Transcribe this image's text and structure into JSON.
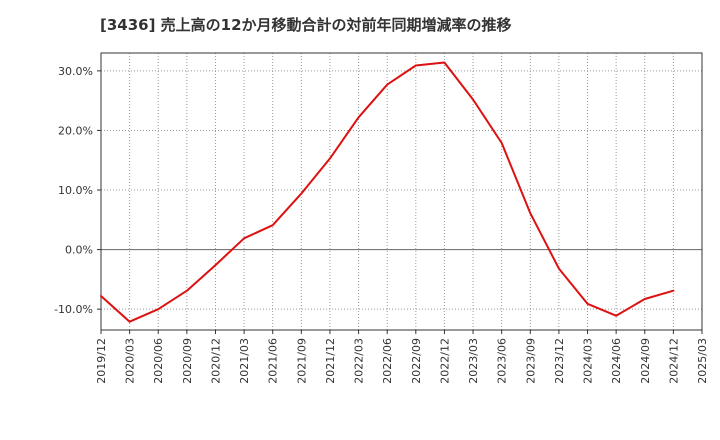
{
  "chart_data": {
    "type": "line",
    "title": "[3436]  売上高の12か月移動合計の対前年同期増減率の推移",
    "xlabel": "",
    "ylabel": "",
    "x": [
      "2019/12",
      "2020/03",
      "2020/06",
      "2020/09",
      "2020/12",
      "2021/03",
      "2021/06",
      "2021/09",
      "2021/12",
      "2022/03",
      "2022/06",
      "2022/09",
      "2022/12",
      "2023/03",
      "2023/06",
      "2023/09",
      "2023/12",
      "2024/03",
      "2024/06",
      "2024/09",
      "2024/12",
      "2025/03"
    ],
    "y_tick_labels": [
      "30.0%",
      "20.0%",
      "10.0%",
      "0.0%",
      "-10.0%"
    ],
    "y_ticks": [
      30,
      20,
      10,
      0,
      -10
    ],
    "ylim": [
      -13.5,
      33
    ],
    "grid": true,
    "series": [
      {
        "color": "#dd1111",
        "values": [
          -7.8,
          -12.1,
          -10.0,
          -6.9,
          -2.6,
          1.9,
          4.1,
          9.4,
          15.3,
          22.2,
          27.7,
          30.9,
          31.4,
          25.2,
          17.9,
          6.1,
          -3.2,
          -9.1,
          -11.1,
          -8.3,
          -6.9,
          null
        ]
      }
    ]
  }
}
